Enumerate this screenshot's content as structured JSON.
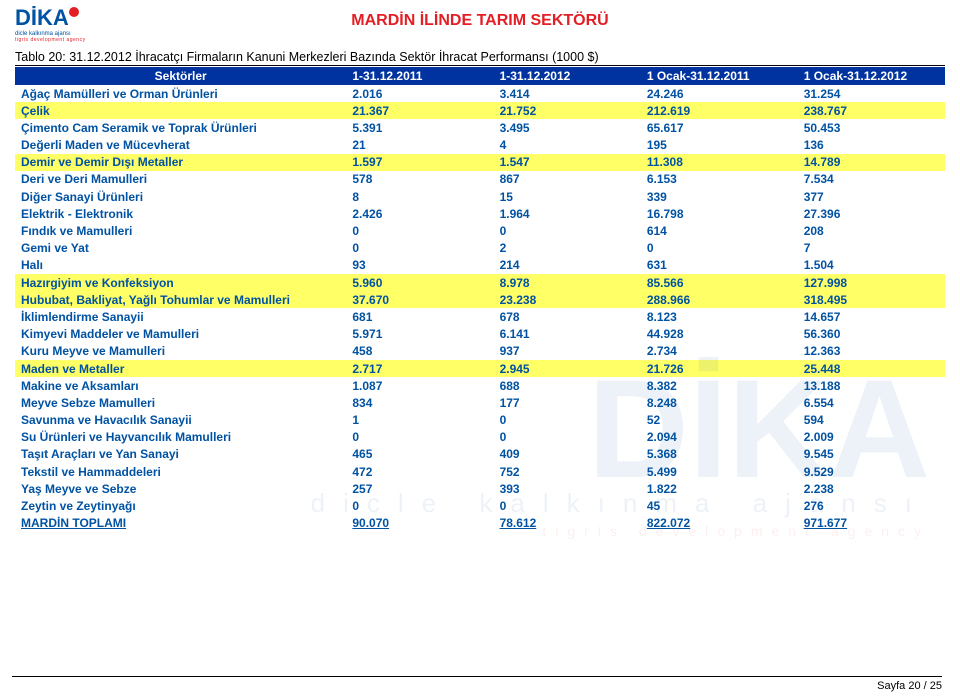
{
  "page": {
    "title": "MARDİN İLİNDE TARIM SEKTÖRÜ",
    "footer": "Sayfa 20 / 25"
  },
  "logo": {
    "brand": "DİKA",
    "sub1": "dicle kalkınma ajansı",
    "sub2": "tigris development agency"
  },
  "table": {
    "caption": "Tablo 20: 31.12.2012 İhracatçı Firmaların Kanuni Merkezleri Bazında Sektör İhracat Performansı (1000 $)",
    "columns": [
      "Sektörler",
      "1-31.12.2011",
      "1-31.12.2012",
      "1 Ocak-31.12.2011",
      "1 Ocak-31.12.2012"
    ],
    "rows": [
      {
        "c": [
          "Ağaç Mamülleri ve Orman Ürünleri",
          "2.016",
          "3.414",
          "24.246",
          "31.254"
        ],
        "hl": false
      },
      {
        "c": [
          "Çelik",
          "21.367",
          "21.752",
          "212.619",
          "238.767"
        ],
        "hl": true
      },
      {
        "c": [
          "Çimento Cam Seramik ve Toprak Ürünleri",
          "5.391",
          "3.495",
          "65.617",
          "50.453"
        ],
        "hl": false
      },
      {
        "c": [
          "Değerli Maden ve Mücevherat",
          "21",
          "4",
          "195",
          "136"
        ],
        "hl": false
      },
      {
        "c": [
          "Demir ve Demir Dışı Metaller",
          "1.597",
          "1.547",
          "11.308",
          "14.789"
        ],
        "hl": true
      },
      {
        "c": [
          "Deri ve Deri Mamulleri",
          "578",
          "867",
          "6.153",
          "7.534"
        ],
        "hl": false
      },
      {
        "c": [
          "Diğer Sanayi Ürünleri",
          "8",
          "15",
          "339",
          "377"
        ],
        "hl": false
      },
      {
        "c": [
          "Elektrik - Elektronik",
          "2.426",
          "1.964",
          "16.798",
          "27.396"
        ],
        "hl": false
      },
      {
        "c": [
          "Fındık ve Mamulleri",
          "0",
          "0",
          "614",
          "208"
        ],
        "hl": false
      },
      {
        "c": [
          "Gemi ve Yat",
          "0",
          "2",
          "0",
          "7"
        ],
        "hl": false
      },
      {
        "c": [
          "Halı",
          "93",
          "214",
          "631",
          "1.504"
        ],
        "hl": false
      },
      {
        "c": [
          "Hazırgiyim ve Konfeksiyon",
          "5.960",
          "8.978",
          "85.566",
          "127.998"
        ],
        "hl": true
      },
      {
        "c": [
          "Hububat, Bakliyat, Yağlı Tohumlar ve Mamulleri",
          "37.670",
          "23.238",
          "288.966",
          "318.495"
        ],
        "hl": true
      },
      {
        "c": [
          "İklimlendirme Sanayii",
          "681",
          "678",
          "8.123",
          "14.657"
        ],
        "hl": false
      },
      {
        "c": [
          "Kimyevi Maddeler ve Mamulleri",
          "5.971",
          "6.141",
          "44.928",
          "56.360"
        ],
        "hl": false
      },
      {
        "c": [
          "Kuru Meyve ve Mamulleri",
          "458",
          "937",
          "2.734",
          "12.363"
        ],
        "hl": false
      },
      {
        "c": [
          "Maden ve Metaller",
          "2.717",
          "2.945",
          "21.726",
          "25.448"
        ],
        "hl": true
      },
      {
        "c": [
          "Makine ve Aksamları",
          "1.087",
          "688",
          "8.382",
          "13.188"
        ],
        "hl": false
      },
      {
        "c": [
          "Meyve Sebze Mamulleri",
          "834",
          "177",
          "8.248",
          "6.554"
        ],
        "hl": false
      },
      {
        "c": [
          "Savunma ve Havacılık Sanayii",
          "1",
          "0",
          "52",
          "594"
        ],
        "hl": false
      },
      {
        "c": [
          "Su Ürünleri ve Hayvancılık Mamulleri",
          "0",
          "0",
          "2.094",
          "2.009"
        ],
        "hl": false
      },
      {
        "c": [
          "Taşıt Araçları ve Yan Sanayi",
          "465",
          "409",
          "5.368",
          "9.545"
        ],
        "hl": false
      },
      {
        "c": [
          "Tekstil ve Hammaddeleri",
          "472",
          "752",
          "5.499",
          "9.529"
        ],
        "hl": false
      },
      {
        "c": [
          "Yaş Meyve ve Sebze",
          "257",
          "393",
          "1.822",
          "2.238"
        ],
        "hl": false
      },
      {
        "c": [
          "Zeytin ve Zeytinyağı",
          "0",
          "0",
          "45",
          "276"
        ],
        "hl": false
      },
      {
        "c": [
          "MARDİN TOPLAMI",
          "90.070",
          "78.612",
          "822.072",
          "971.677"
        ],
        "hl": false,
        "total": true
      }
    ]
  },
  "watermark": {
    "big": "DİKA",
    "line1": "dicle kalkınma ajansı",
    "line2": "tigris development agency"
  },
  "styles": {
    "header_bg": "#0033a0",
    "header_fg": "#ffffff",
    "cell_fg": "#0052a3",
    "highlight_bg": "#ffff66",
    "title_color": "#e31e24"
  }
}
